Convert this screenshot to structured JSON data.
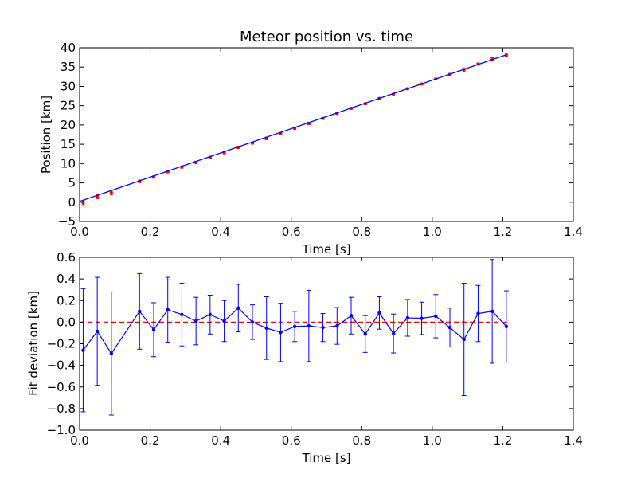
{
  "chart_data": [
    {
      "type": "scatter",
      "title": "Meteor position vs. time",
      "xlabel": "Time [s]",
      "ylabel": "Position [km]",
      "xlim": [
        0.0,
        1.4
      ],
      "ylim": [
        -5,
        40
      ],
      "xticks": [
        "0.0",
        "0.2",
        "0.4",
        "0.6",
        "0.8",
        "1.0",
        "1.2",
        "1.4"
      ],
      "yticks": [
        "−5",
        "0",
        "5",
        "10",
        "15",
        "20",
        "25",
        "30",
        "35",
        "40"
      ],
      "grid": false,
      "colors": {
        "points": "#ff0000",
        "fit": "#0000ff"
      },
      "series": [
        {
          "style": "red points with error bars",
          "x": [
            0.01,
            0.05,
            0.09,
            0.17,
            0.21,
            0.25,
            0.29,
            0.33,
            0.37,
            0.41,
            0.45,
            0.49,
            0.53,
            0.57,
            0.61,
            0.65,
            0.69,
            0.73,
            0.77,
            0.81,
            0.85,
            0.89,
            0.93,
            0.97,
            1.01,
            1.05,
            1.09,
            1.13,
            1.17,
            1.21
          ],
          "y": [
            -0.1,
            1.4,
            2.5,
            5.4,
            6.5,
            7.9,
            9.1,
            10.3,
            11.6,
            12.8,
            14.2,
            15.3,
            16.5,
            17.7,
            19.1,
            20.4,
            21.7,
            23.0,
            24.3,
            25.5,
            26.9,
            28.0,
            29.4,
            30.6,
            31.9,
            33.1,
            34.2,
            35.8,
            37.0,
            38.1
          ],
          "err": [
            0.55,
            0.5,
            0.55,
            0.35,
            0.3,
            0.3,
            0.3,
            0.3,
            0.25,
            0.25,
            0.3,
            0.25,
            0.35,
            0.3,
            0.25,
            0.3,
            0.25,
            0.25,
            0.25,
            0.25,
            0.2,
            0.2,
            0.2,
            0.2,
            0.25,
            0.25,
            0.5,
            0.25,
            0.45,
            0.3
          ]
        },
        {
          "style": "blue fit line",
          "x": [
            0.0,
            1.21
          ],
          "y": [
            0.2,
            38.2
          ]
        }
      ]
    },
    {
      "type": "line",
      "title": "",
      "xlabel": "Time [s]",
      "ylabel": "Fit deviation [km]",
      "xlim": [
        0.0,
        1.4
      ],
      "ylim": [
        -1.0,
        0.6
      ],
      "xticks": [
        "0.0",
        "0.2",
        "0.4",
        "0.6",
        "0.8",
        "1.0",
        "1.2",
        "1.4"
      ],
      "yticks": [
        "−1.0",
        "−0.8",
        "−0.6",
        "−0.4",
        "−0.2",
        "0.0",
        "0.2",
        "0.4",
        "0.6"
      ],
      "grid": false,
      "reference_line": {
        "y": 0.0,
        "style": "dashed",
        "color": "#ff0000"
      },
      "colors": {
        "line": "#0000ff"
      },
      "series": [
        {
          "style": "blue line with markers and error bars",
          "x": [
            0.01,
            0.05,
            0.09,
            0.17,
            0.21,
            0.25,
            0.29,
            0.33,
            0.37,
            0.41,
            0.45,
            0.49,
            0.53,
            0.57,
            0.61,
            0.65,
            0.69,
            0.73,
            0.77,
            0.81,
            0.85,
            0.89,
            0.93,
            0.97,
            1.01,
            1.05,
            1.09,
            1.13,
            1.17,
            1.21
          ],
          "y": [
            -0.26,
            -0.085,
            -0.29,
            0.1,
            -0.07,
            0.115,
            0.07,
            0.01,
            0.07,
            0.01,
            0.13,
            0.0,
            -0.055,
            -0.095,
            -0.04,
            -0.035,
            -0.05,
            -0.035,
            0.06,
            -0.11,
            0.085,
            -0.105,
            0.04,
            0.035,
            0.055,
            -0.05,
            -0.16,
            0.08,
            0.1,
            -0.04
          ],
          "err": [
            0.57,
            0.5,
            0.57,
            0.35,
            0.25,
            0.3,
            0.29,
            0.22,
            0.18,
            0.19,
            0.22,
            0.16,
            0.29,
            0.27,
            0.14,
            0.33,
            0.13,
            0.17,
            0.17,
            0.17,
            0.15,
            0.18,
            0.17,
            0.15,
            0.2,
            0.18,
            0.52,
            0.26,
            0.48,
            0.33
          ]
        }
      ]
    }
  ]
}
